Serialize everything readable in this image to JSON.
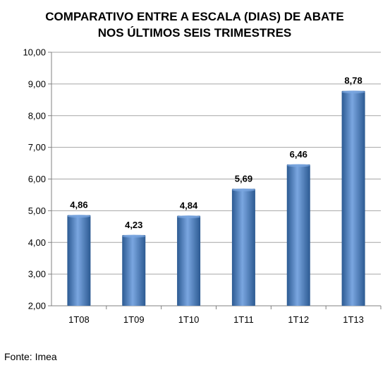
{
  "chart_data": {
    "type": "bar",
    "title": [
      "COMPARATIVO ENTRE A ESCALA  (DIAS) DE ABATE",
      "NOS ÚLTIMOS SEIS TRIMESTRES"
    ],
    "categories": [
      "1T08",
      "1T09",
      "1T10",
      "1T11",
      "1T12",
      "1T13"
    ],
    "values": [
      4.86,
      4.23,
      4.84,
      5.69,
      6.46,
      8.78
    ],
    "data_labels": [
      "4,86",
      "4,23",
      "4,84",
      "5,69",
      "6,46",
      "8,78"
    ],
    "ylim": [
      2,
      10
    ],
    "yticks": [
      "2,00",
      "3,00",
      "4,00",
      "5,00",
      "6,00",
      "7,00",
      "8,00",
      "9,00",
      "10,00"
    ],
    "xlabel": "",
    "ylabel": "",
    "grid": true,
    "legend": "none",
    "bar_color": "#4a7ebb",
    "bar_dark_color": "#2c5a92",
    "bar_light_color": "#7aa6e0",
    "grid_color": "#a6a6a6"
  },
  "source": "Fonte: Imea"
}
